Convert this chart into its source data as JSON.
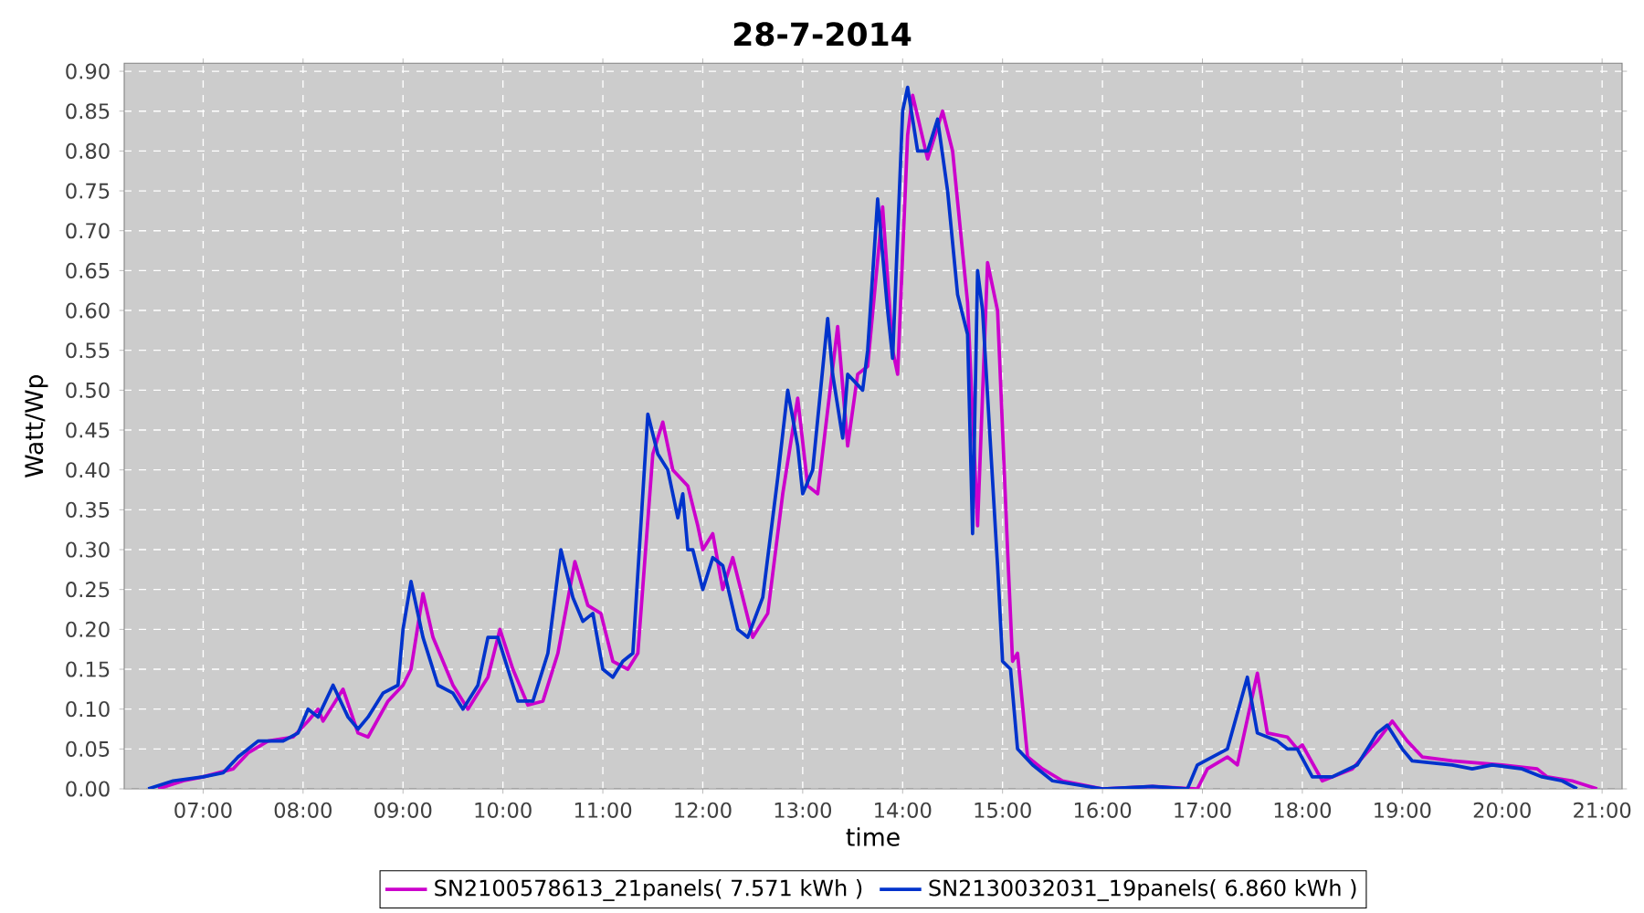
{
  "chart_data": {
    "type": "line",
    "title": "28-7-2014",
    "xlabel": "time",
    "ylabel": "Watt/Wp",
    "xlim": [
      6.21,
      21.2
    ],
    "xticks": [
      {
        "value": 7,
        "label": "07:00"
      },
      {
        "value": 8,
        "label": "08:00"
      },
      {
        "value": 9,
        "label": "09:00"
      },
      {
        "value": 10,
        "label": "10:00"
      },
      {
        "value": 11,
        "label": "11:00"
      },
      {
        "value": 12,
        "label": "12:00"
      },
      {
        "value": 13,
        "label": "13:00"
      },
      {
        "value": 14,
        "label": "14:00"
      },
      {
        "value": 15,
        "label": "15:00"
      },
      {
        "value": 16,
        "label": "16:00"
      },
      {
        "value": 17,
        "label": "17:00"
      },
      {
        "value": 18,
        "label": "18:00"
      },
      {
        "value": 19,
        "label": "19:00"
      },
      {
        "value": 20,
        "label": "20:00"
      },
      {
        "value": 21,
        "label": "21:00"
      }
    ],
    "ylim": [
      0,
      0.91
    ],
    "yticks": [
      {
        "value": 0,
        "label": "0.00"
      },
      {
        "value": 0.05,
        "label": "0.05"
      },
      {
        "value": 0.1,
        "label": "0.10"
      },
      {
        "value": 0.15,
        "label": "0.15"
      },
      {
        "value": 0.2,
        "label": "0.20"
      },
      {
        "value": 0.25,
        "label": "0.25"
      },
      {
        "value": 0.3,
        "label": "0.30"
      },
      {
        "value": 0.35,
        "label": "0.35"
      },
      {
        "value": 0.4,
        "label": "0.40"
      },
      {
        "value": 0.45,
        "label": "0.45"
      },
      {
        "value": 0.5,
        "label": "0.50"
      },
      {
        "value": 0.55,
        "label": "0.55"
      },
      {
        "value": 0.6,
        "label": "0.60"
      },
      {
        "value": 0.65,
        "label": "0.65"
      },
      {
        "value": 0.7,
        "label": "0.70"
      },
      {
        "value": 0.75,
        "label": "0.75"
      },
      {
        "value": 0.8,
        "label": "0.80"
      },
      {
        "value": 0.85,
        "label": "0.85"
      },
      {
        "value": 0.9,
        "label": "0.90"
      }
    ],
    "grid": true,
    "legend": "bottom",
    "line_style": "solid",
    "series": [
      {
        "name": "SN2100578613_21panels( 7.571 kWh )",
        "color": "#cc00cc",
        "x": [
          6.55,
          6.8,
          7.0,
          7.3,
          7.45,
          7.65,
          7.9,
          8.05,
          8.15,
          8.2,
          8.4,
          8.55,
          8.65,
          8.85,
          9.0,
          9.08,
          9.2,
          9.3,
          9.4,
          9.5,
          9.65,
          9.85,
          9.97,
          10.1,
          10.25,
          10.4,
          10.55,
          10.72,
          10.85,
          10.98,
          11.1,
          11.25,
          11.35,
          11.5,
          11.6,
          11.7,
          11.85,
          11.95,
          12.0,
          12.1,
          12.2,
          12.3,
          12.5,
          12.65,
          12.8,
          12.95,
          13.05,
          13.15,
          13.35,
          13.45,
          13.55,
          13.65,
          13.8,
          13.9,
          13.95,
          14.05,
          14.1,
          14.25,
          14.4,
          14.5,
          14.65,
          14.75,
          14.85,
          14.95,
          15.05,
          15.1,
          15.15,
          15.25,
          15.4,
          15.6,
          16.0,
          16.5,
          16.95,
          17.05,
          17.25,
          17.35,
          17.55,
          17.65,
          17.85,
          17.95,
          18.0,
          18.2,
          18.5,
          18.75,
          18.9,
          19.05,
          19.2,
          19.5,
          20.0,
          20.35,
          20.45,
          20.7,
          20.95
        ],
        "values": [
          0.0,
          0.01,
          0.015,
          0.025,
          0.045,
          0.06,
          0.065,
          0.085,
          0.1,
          0.085,
          0.125,
          0.07,
          0.065,
          0.11,
          0.13,
          0.15,
          0.245,
          0.19,
          0.16,
          0.13,
          0.1,
          0.14,
          0.2,
          0.15,
          0.105,
          0.11,
          0.17,
          0.285,
          0.23,
          0.22,
          0.16,
          0.15,
          0.17,
          0.42,
          0.46,
          0.4,
          0.38,
          0.33,
          0.3,
          0.32,
          0.25,
          0.29,
          0.19,
          0.22,
          0.37,
          0.49,
          0.38,
          0.37,
          0.58,
          0.43,
          0.52,
          0.53,
          0.73,
          0.55,
          0.52,
          0.82,
          0.87,
          0.79,
          0.85,
          0.8,
          0.61,
          0.33,
          0.66,
          0.6,
          0.3,
          0.16,
          0.17,
          0.04,
          0.025,
          0.01,
          0.0,
          0.003,
          0.0,
          0.025,
          0.04,
          0.03,
          0.145,
          0.07,
          0.065,
          0.05,
          0.055,
          0.01,
          0.025,
          0.06,
          0.085,
          0.06,
          0.04,
          0.035,
          0.03,
          0.025,
          0.015,
          0.01,
          0.0
        ]
      },
      {
        "name": "SN2130032031_19panels( 6.860 kWh )",
        "color": "#0033cc",
        "x": [
          6.45,
          6.7,
          7.0,
          7.2,
          7.35,
          7.55,
          7.8,
          7.95,
          8.05,
          8.15,
          8.3,
          8.45,
          8.55,
          8.65,
          8.8,
          8.95,
          9.0,
          9.08,
          9.2,
          9.35,
          9.5,
          9.6,
          9.75,
          9.85,
          9.95,
          10.05,
          10.15,
          10.3,
          10.45,
          10.58,
          10.7,
          10.8,
          10.9,
          11.0,
          11.1,
          11.2,
          11.3,
          11.45,
          11.55,
          11.65,
          11.75,
          11.8,
          11.85,
          11.9,
          12.0,
          12.1,
          12.2,
          12.35,
          12.45,
          12.6,
          12.75,
          12.85,
          12.95,
          13.0,
          13.1,
          13.25,
          13.3,
          13.4,
          13.45,
          13.6,
          13.65,
          13.75,
          13.85,
          13.9,
          14.0,
          14.05,
          14.15,
          14.25,
          14.35,
          14.45,
          14.55,
          14.65,
          14.7,
          14.75,
          14.8,
          14.95,
          15.0,
          15.08,
          15.15,
          15.3,
          15.5,
          16.0,
          16.5,
          16.85,
          16.95,
          17.1,
          17.25,
          17.45,
          17.55,
          17.75,
          17.85,
          17.95,
          18.1,
          18.3,
          18.55,
          18.75,
          18.85,
          19.0,
          19.1,
          19.5,
          19.7,
          19.9,
          20.2,
          20.4,
          20.6,
          20.75
        ],
        "values": [
          0.0,
          0.01,
          0.015,
          0.02,
          0.04,
          0.06,
          0.06,
          0.07,
          0.1,
          0.09,
          0.13,
          0.09,
          0.075,
          0.09,
          0.12,
          0.13,
          0.2,
          0.26,
          0.19,
          0.13,
          0.12,
          0.1,
          0.13,
          0.19,
          0.19,
          0.15,
          0.11,
          0.11,
          0.17,
          0.3,
          0.24,
          0.21,
          0.22,
          0.15,
          0.14,
          0.16,
          0.17,
          0.47,
          0.42,
          0.4,
          0.34,
          0.37,
          0.3,
          0.3,
          0.25,
          0.29,
          0.28,
          0.2,
          0.19,
          0.24,
          0.39,
          0.5,
          0.43,
          0.37,
          0.4,
          0.59,
          0.52,
          0.44,
          0.52,
          0.5,
          0.55,
          0.74,
          0.6,
          0.54,
          0.85,
          0.88,
          0.8,
          0.8,
          0.84,
          0.75,
          0.62,
          0.57,
          0.32,
          0.65,
          0.6,
          0.28,
          0.16,
          0.15,
          0.05,
          0.03,
          0.01,
          0.0,
          0.003,
          0.0,
          0.03,
          0.04,
          0.05,
          0.14,
          0.07,
          0.06,
          0.05,
          0.05,
          0.015,
          0.015,
          0.03,
          0.07,
          0.08,
          0.05,
          0.035,
          0.03,
          0.025,
          0.03,
          0.025,
          0.015,
          0.01,
          0.0
        ]
      }
    ]
  }
}
